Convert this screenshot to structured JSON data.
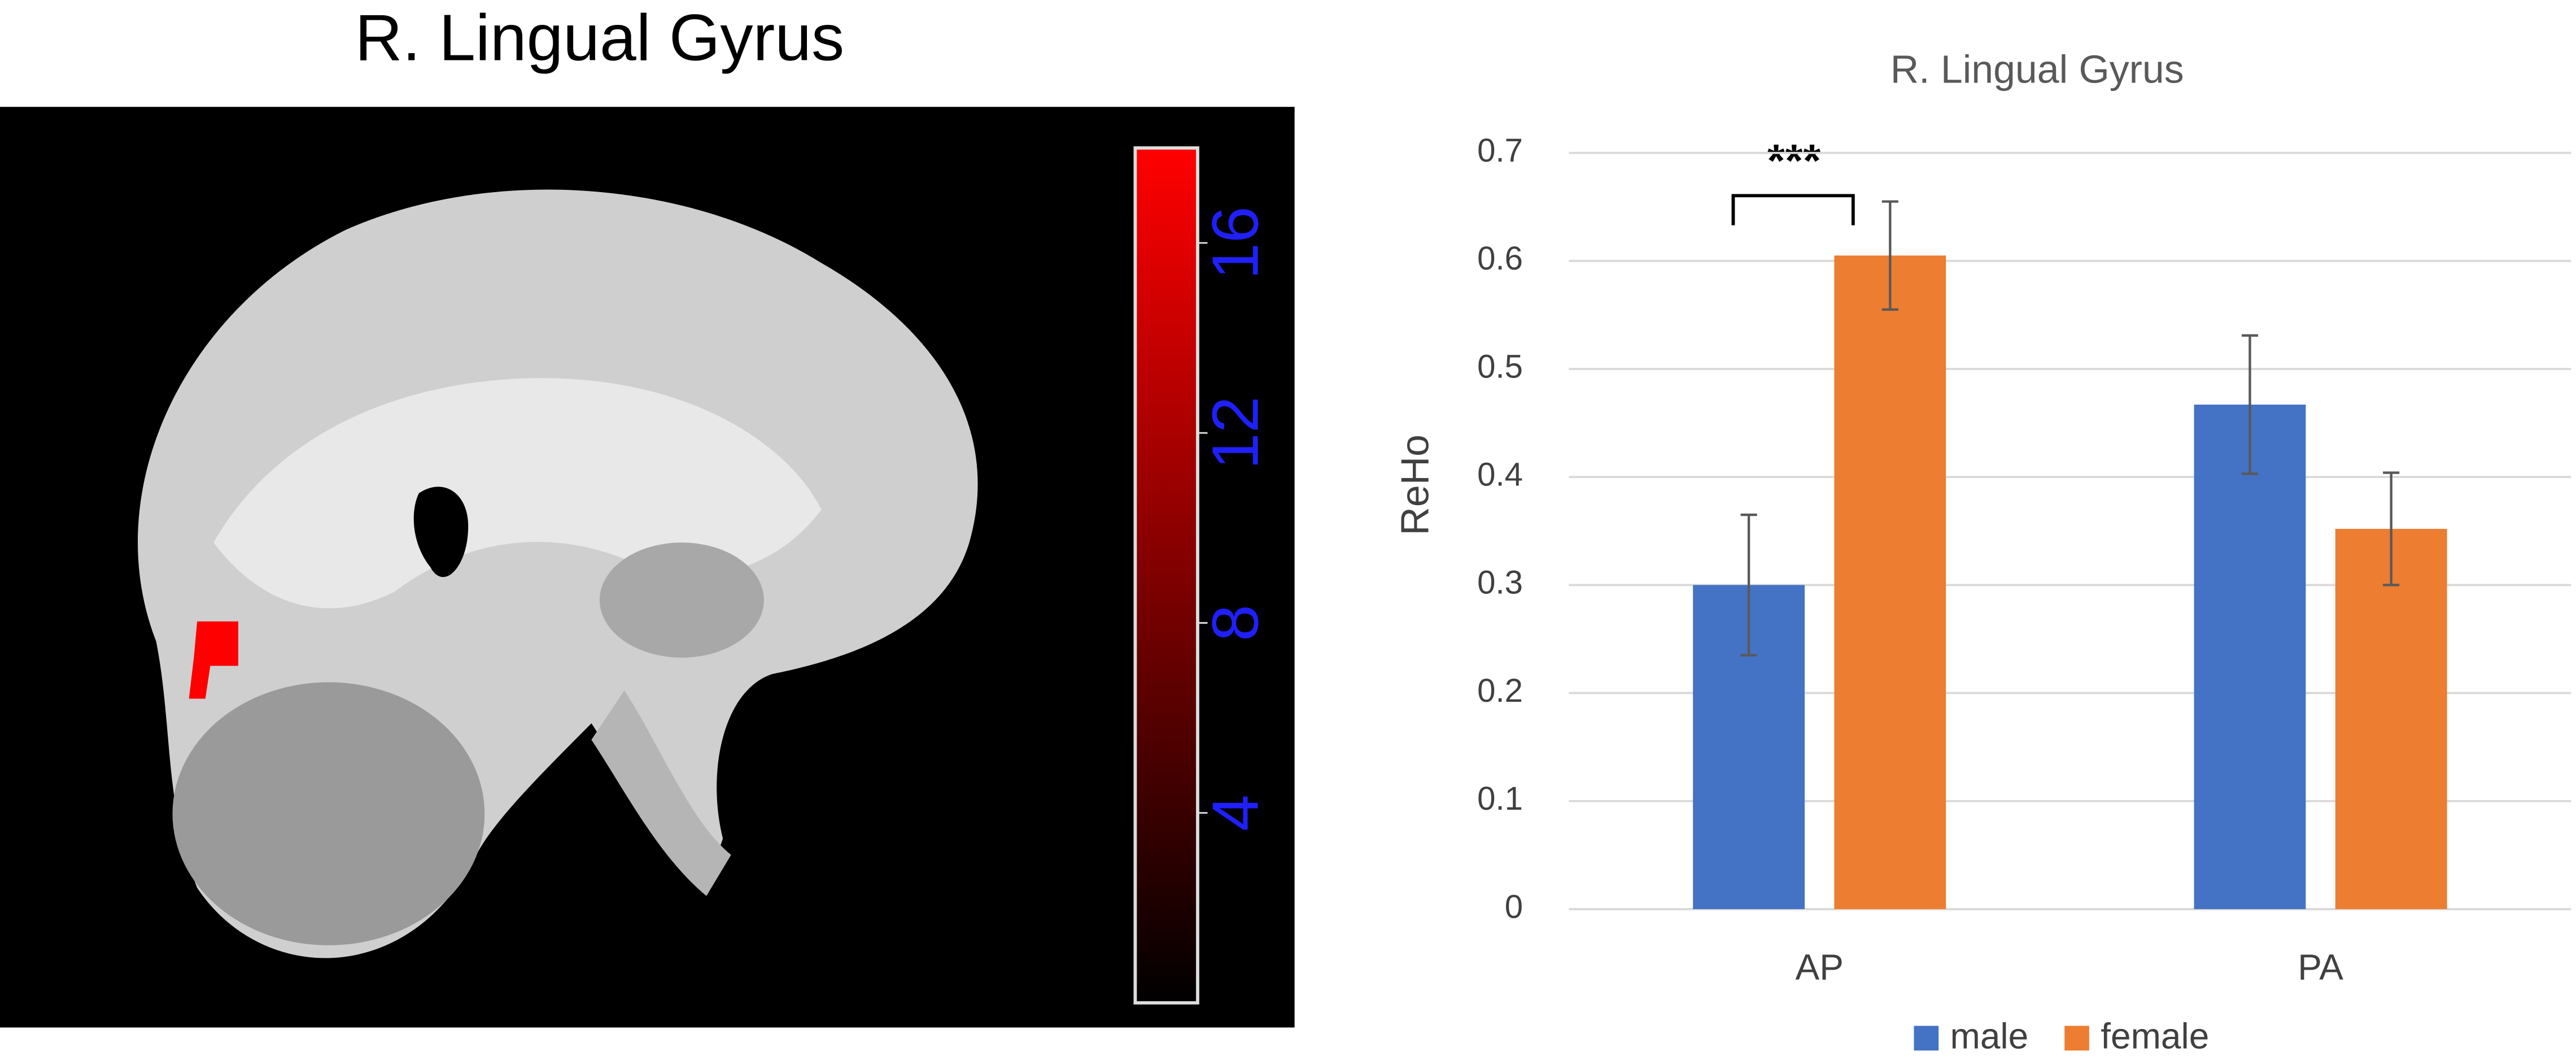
{
  "chart_data": [
    {
      "type": "image",
      "title": "R. Lingual Gyrus",
      "colorbar": {
        "lim": [
          0,
          18
        ],
        "ticks": [
          4,
          8,
          12,
          16
        ],
        "colors": [
          "#000000",
          "#ff0000"
        ],
        "tick_color": "#2020ff"
      }
    },
    {
      "type": "bar",
      "title": "R. Lingual Gyrus",
      "y_label": "ReHo",
      "categories": [
        "AP",
        "PA"
      ],
      "series": [
        {
          "name": "male",
          "color": "#4472c4",
          "values": [
            0.3,
            0.467
          ],
          "errors": [
            0.065,
            0.064
          ]
        },
        {
          "name": "female",
          "color": "#ed7d31",
          "values": [
            0.605,
            0.352
          ],
          "errors": [
            0.05,
            0.052
          ]
        }
      ],
      "ylim": [
        0,
        0.7
      ],
      "yticks": [
        0,
        0.1,
        0.2,
        0.3,
        0.4,
        0.5,
        0.6,
        0.7
      ],
      "grid": true,
      "annotation": "***",
      "legend": "bottom"
    }
  ]
}
